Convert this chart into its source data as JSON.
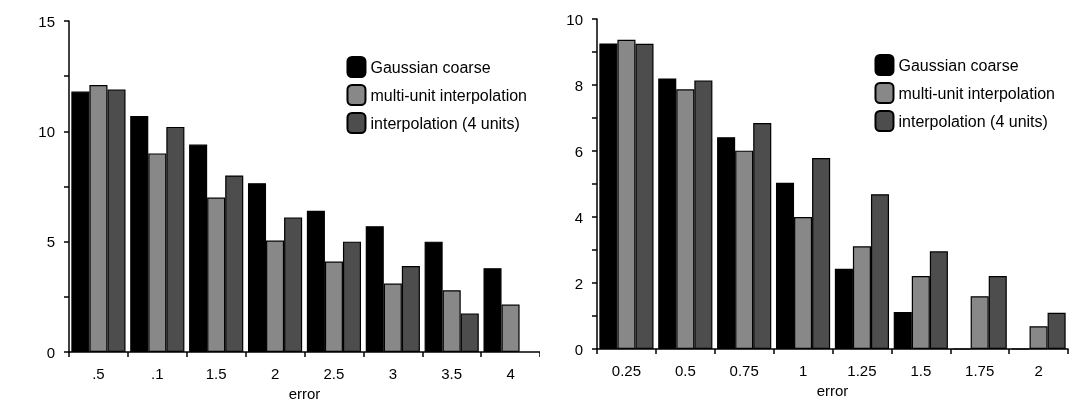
{
  "chart_data": [
    {
      "type": "bar",
      "xlabel": "error",
      "categories": [
        ".5",
        ".1",
        "1.5",
        "2",
        "2.5",
        "3",
        "3.5",
        "4"
      ],
      "series": [
        {
          "name": "Gaussian coarse",
          "color": "#000000",
          "values": [
            11.8,
            10.7,
            9.4,
            7.65,
            6.4,
            5.7,
            5.0,
            3.8
          ]
        },
        {
          "name": "multi-unit interpolation",
          "color": "#888888",
          "values": [
            12.1,
            9.0,
            7.0,
            5.05,
            4.1,
            3.1,
            2.8,
            2.15
          ]
        },
        {
          "name": "interpolation (4 units)",
          "color": "#4d4d4d",
          "values": [
            11.9,
            10.2,
            8.0,
            6.1,
            5.0,
            3.9,
            1.75,
            null
          ]
        }
      ],
      "ylim": [
        0,
        15
      ],
      "yticks": [
        0,
        {
          "value": 2.5,
          "label": null
        },
        5,
        {
          "value": 7.5,
          "label": null
        },
        10,
        {
          "value": 12.5,
          "label": null
        },
        15
      ],
      "legend": "top right"
    },
    {
      "type": "bar",
      "xlabel": "error",
      "categories": [
        "0.25",
        "0.5",
        "0.75",
        "1",
        "1.25",
        "1.5",
        "1.75",
        "2"
      ],
      "series": [
        {
          "name": "Gaussian coarse",
          "color": "#000000",
          "values": [
            9.26,
            8.2,
            6.42,
            5.04,
            2.43,
            1.12,
            0,
            0
          ]
        },
        {
          "name": "multi-unit interpolation",
          "color": "#888888",
          "values": [
            9.37,
            7.87,
            6.01,
            4.0,
            3.11,
            2.21,
            1.6,
            0.69
          ]
        },
        {
          "name": "interpolation (4 units)",
          "color": "#4d4d4d",
          "values": [
            9.25,
            8.14,
            6.85,
            5.79,
            4.69,
            2.96,
            2.21,
            1.1
          ]
        }
      ],
      "ylim": [
        0,
        10
      ],
      "yticks": [
        0,
        {
          "value": 1,
          "label": null
        },
        2,
        {
          "value": 3,
          "label": null
        },
        4,
        {
          "value": 5,
          "label": null
        },
        6,
        {
          "value": 7,
          "label": null
        },
        8,
        {
          "value": 9,
          "label": null
        },
        10
      ],
      "legend": "top right"
    }
  ]
}
